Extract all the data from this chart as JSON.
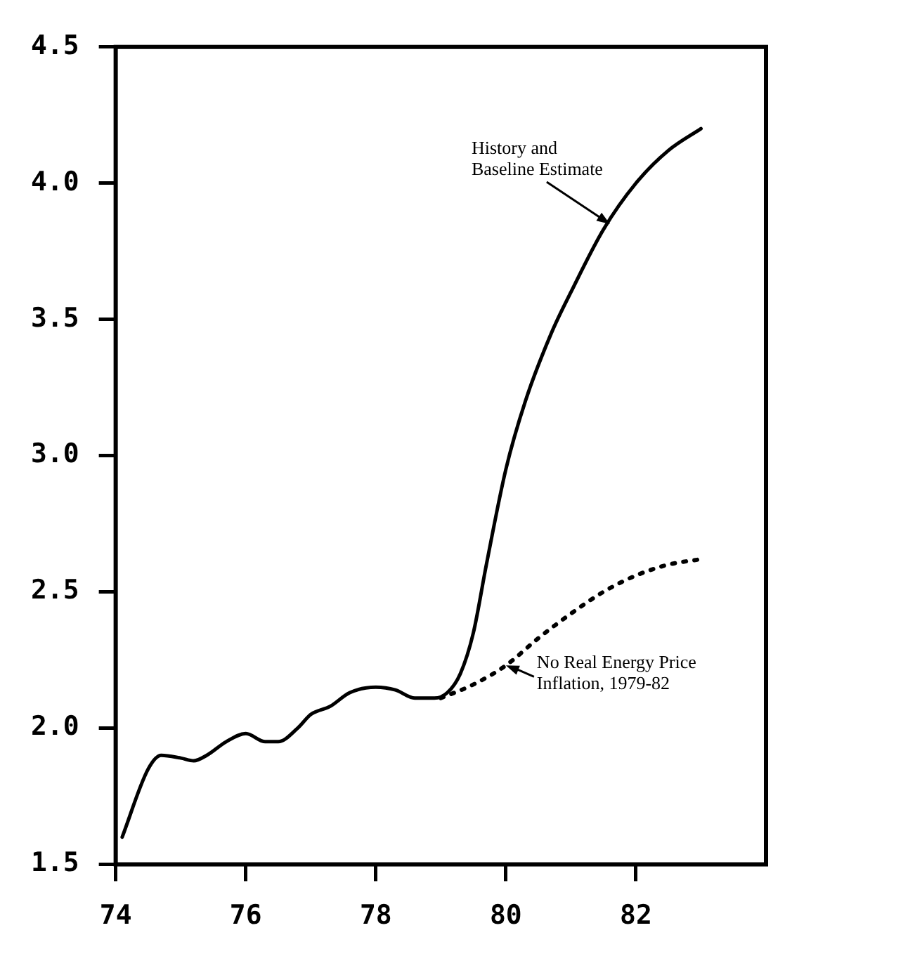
{
  "chart_data": {
    "type": "line",
    "xlim": [
      74,
      84
    ],
    "xticks": [
      74,
      76,
      78,
      80,
      82
    ],
    "ylim": [
      1.5,
      4.5
    ],
    "yticks": [
      {
        "value": 1.5,
        "label": "1.5"
      },
      {
        "value": 2.0,
        "label": "2.0"
      },
      {
        "value": 2.5,
        "label": "2.5"
      },
      {
        "value": 3.0,
        "label": "3.0"
      },
      {
        "value": 3.5,
        "label": "3.5"
      },
      {
        "value": 4.0,
        "label": "4.0"
      },
      {
        "value": 4.5,
        "label": "4.5"
      }
    ],
    "grid": false,
    "legend": false,
    "marker": "none",
    "series": [
      {
        "color": "#000000",
        "line_style": "solid",
        "x": [
          74.1,
          74.5,
          74.7,
          75.0,
          75.2,
          75.4,
          75.7,
          76.0,
          76.3,
          76.5,
          76.8,
          77.0,
          77.3,
          77.6,
          78.0,
          78.3,
          78.6,
          78.9,
          79.1,
          79.3,
          79.5,
          79.7,
          80.0,
          80.3,
          80.7,
          81.0,
          81.5,
          82.0,
          82.5,
          83.0
        ],
        "values": [
          1.6,
          1.85,
          1.9,
          1.89,
          1.88,
          1.9,
          1.95,
          1.98,
          1.95,
          1.95,
          2.0,
          2.05,
          2.08,
          2.13,
          2.15,
          2.14,
          2.11,
          2.11,
          2.13,
          2.2,
          2.35,
          2.6,
          2.95,
          3.2,
          3.45,
          3.6,
          3.83,
          4.0,
          4.12,
          4.2
        ]
      },
      {
        "color": "#000000",
        "line_style": "dotted",
        "x": [
          79.0,
          79.5,
          80.0,
          80.5,
          81.0,
          81.5,
          82.0,
          82.5,
          83.0
        ],
        "values": [
          2.11,
          2.16,
          2.23,
          2.33,
          2.42,
          2.5,
          2.56,
          2.6,
          2.62
        ]
      }
    ],
    "annotations": [
      {
        "text": "History and\nBaseline Estimate",
        "x": 81.6,
        "y": 3.85
      },
      {
        "text": "No Real Energy Price\nInflation, 1979-82",
        "x": 80.0,
        "y": 2.23
      }
    ]
  }
}
